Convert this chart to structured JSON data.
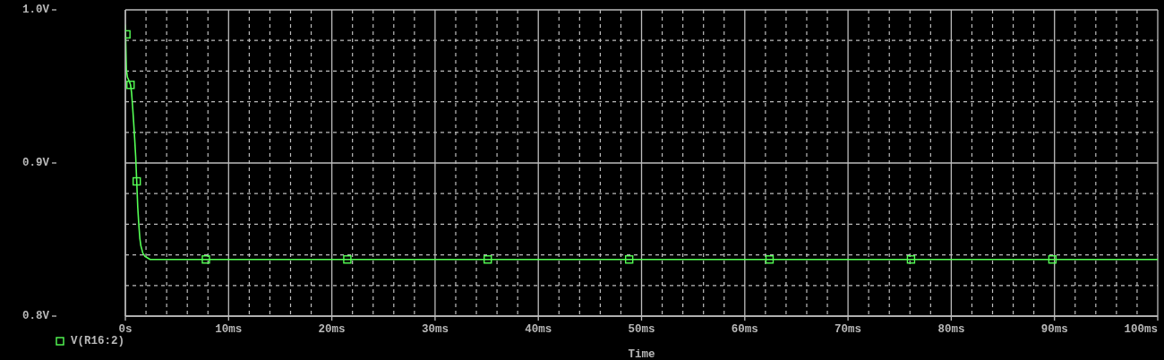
{
  "chart_data": {
    "type": "line",
    "xlabel": "Time",
    "xlim": [
      0,
      100
    ],
    "xticks": [
      {
        "value": 0,
        "label": "0s"
      },
      {
        "value": 2,
        "label": null
      },
      {
        "value": 4,
        "label": null
      },
      {
        "value": 6,
        "label": null
      },
      {
        "value": 8,
        "label": null
      },
      {
        "value": 10,
        "label": "10ms"
      },
      {
        "value": 12,
        "label": null
      },
      {
        "value": 14,
        "label": null
      },
      {
        "value": 16,
        "label": null
      },
      {
        "value": 18,
        "label": null
      },
      {
        "value": 20,
        "label": "20ms"
      },
      {
        "value": 22,
        "label": null
      },
      {
        "value": 24,
        "label": null
      },
      {
        "value": 26,
        "label": null
      },
      {
        "value": 28,
        "label": null
      },
      {
        "value": 30,
        "label": "30ms"
      },
      {
        "value": 32,
        "label": null
      },
      {
        "value": 34,
        "label": null
      },
      {
        "value": 36,
        "label": null
      },
      {
        "value": 38,
        "label": null
      },
      {
        "value": 40,
        "label": "40ms"
      },
      {
        "value": 42,
        "label": null
      },
      {
        "value": 44,
        "label": null
      },
      {
        "value": 46,
        "label": null
      },
      {
        "value": 48,
        "label": null
      },
      {
        "value": 50,
        "label": "50ms"
      },
      {
        "value": 52,
        "label": null
      },
      {
        "value": 54,
        "label": null
      },
      {
        "value": 56,
        "label": null
      },
      {
        "value": 58,
        "label": null
      },
      {
        "value": 60,
        "label": "60ms"
      },
      {
        "value": 62,
        "label": null
      },
      {
        "value": 64,
        "label": null
      },
      {
        "value": 66,
        "label": null
      },
      {
        "value": 68,
        "label": null
      },
      {
        "value": 70,
        "label": "70ms"
      },
      {
        "value": 72,
        "label": null
      },
      {
        "value": 74,
        "label": null
      },
      {
        "value": 76,
        "label": null
      },
      {
        "value": 78,
        "label": null
      },
      {
        "value": 80,
        "label": "80ms"
      },
      {
        "value": 82,
        "label": null
      },
      {
        "value": 84,
        "label": null
      },
      {
        "value": 86,
        "label": null
      },
      {
        "value": 88,
        "label": null
      },
      {
        "value": 90,
        "label": "90ms"
      },
      {
        "value": 92,
        "label": null
      },
      {
        "value": 94,
        "label": null
      },
      {
        "value": 96,
        "label": null
      },
      {
        "value": 98,
        "label": null
      },
      {
        "value": 100,
        "label": "100ms"
      }
    ],
    "ylim": [
      0.8,
      1.0
    ],
    "yticks": [
      {
        "value": 0.8,
        "label": "0.8V"
      },
      {
        "value": 0.82,
        "label": null
      },
      {
        "value": 0.84,
        "label": null
      },
      {
        "value": 0.86,
        "label": null
      },
      {
        "value": 0.88,
        "label": null
      },
      {
        "value": 0.9,
        "label": "0.9V"
      },
      {
        "value": 0.92,
        "label": null
      },
      {
        "value": 0.94,
        "label": null
      },
      {
        "value": 0.96,
        "label": null
      },
      {
        "value": 0.98,
        "label": null
      },
      {
        "value": 1.0,
        "label": "1.0V"
      }
    ],
    "grid": true,
    "legend": "bottom left",
    "series": [
      {
        "name": "V(R16:2)",
        "color": "#55ff55",
        "x": [
          0,
          0.1,
          0.2,
          0.4,
          0.5,
          0.6,
          0.7,
          0.8,
          0.9,
          1.0,
          1.1,
          1.2,
          1.3,
          1.4,
          1.5,
          1.7,
          1.9,
          2.4,
          100
        ],
        "values": [
          0.99,
          0.961,
          0.956,
          0.953,
          0.951,
          0.946,
          0.937,
          0.927,
          0.916,
          0.904,
          0.888,
          0.871,
          0.86,
          0.851,
          0.846,
          0.841,
          0.839,
          0.837,
          0.837
        ]
      },
      {
        "type": "scatter",
        "color": "#55ff55",
        "marker": "square",
        "x": [
          0.1,
          0.5,
          1.1,
          7.8,
          21.5,
          35.1,
          48.8,
          62.4,
          76.1,
          89.8
        ],
        "values": [
          0.984,
          0.951,
          0.888,
          0.837,
          0.837,
          0.837,
          0.837,
          0.837,
          0.837,
          0.837
        ]
      }
    ]
  }
}
